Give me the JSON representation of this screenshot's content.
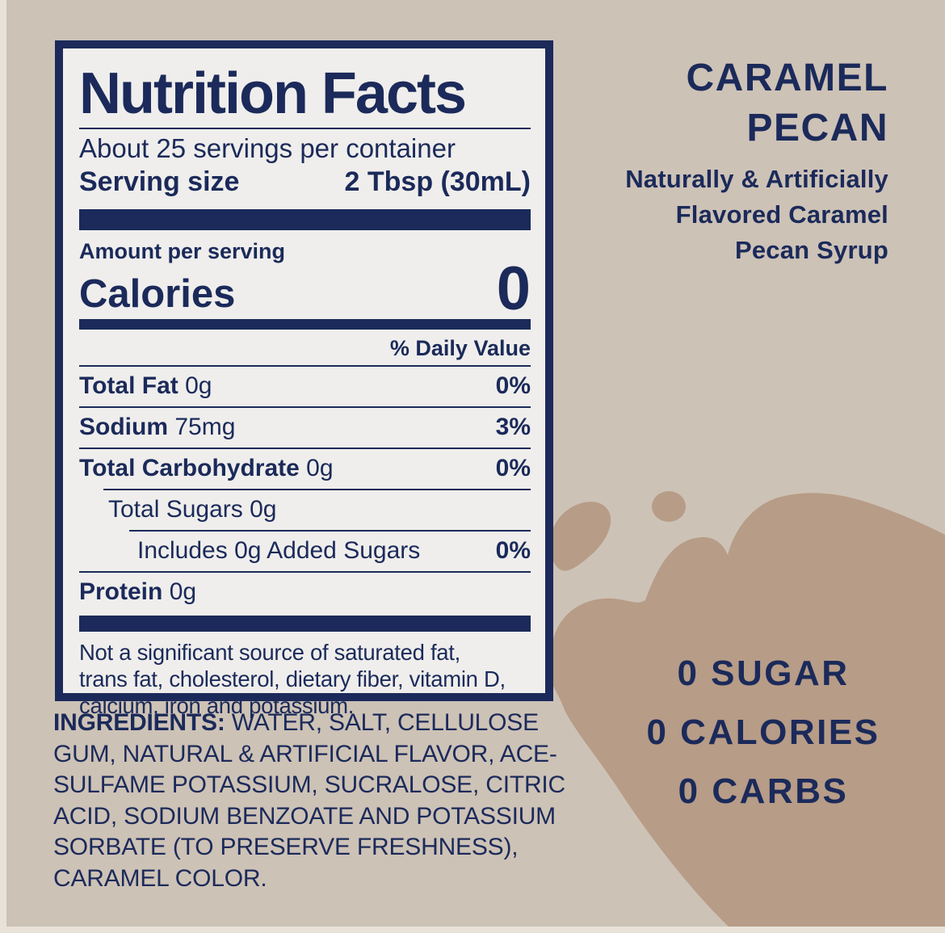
{
  "colors": {
    "navy": "#1b2a5a",
    "background_beige": "#cdc2b6",
    "splash_tan": "#b79c87",
    "label_background": "#efeeec",
    "edge_light": "#e9e2d9"
  },
  "label": {
    "title": "Nutrition Facts",
    "servings_per_container": "About 25 servings per container",
    "serving_size_label": "Serving size",
    "serving_size_value": "2 Tbsp (30mL)",
    "amount_per_serving": "Amount per serving",
    "calories_label": "Calories",
    "calories_value": "0",
    "daily_value_header": "% Daily Value",
    "rows": [
      {
        "name": "Total Fat",
        "amount": "0g",
        "dv": "0%",
        "indent": 0,
        "bold_name": true
      },
      {
        "name": "Sodium",
        "amount": "75mg",
        "dv": "3%",
        "indent": 0,
        "bold_name": true
      },
      {
        "name": "Total Carbohydrate",
        "amount": "0g",
        "dv": "0%",
        "indent": 0,
        "bold_name": true
      },
      {
        "name": "Total Sugars",
        "amount": "0g",
        "dv": "",
        "indent": 1,
        "bold_name": false
      },
      {
        "name": "Includes 0g Added Sugars",
        "amount": "",
        "dv": "0%",
        "indent": 2,
        "bold_name": false
      },
      {
        "name": "Protein",
        "amount": "0g",
        "dv": "",
        "indent": 0,
        "bold_name": true
      }
    ],
    "footnote_lines": [
      "Not a significant source of saturated fat,",
      "trans fat, cholesterol, dietary fiber, vitamin D,",
      "calcium, iron and potassium."
    ]
  },
  "ingredients": {
    "heading": "INGREDIENTS:",
    "lines": [
      "WATER, SALT, CELLULOSE",
      "GUM, NATURAL & ARTIFICIAL FLAVOR, ACE-",
      "SULFAME POTASSIUM, SUCRALOSE, CITRIC",
      "ACID, SODIUM BENZOATE AND POTASSIUM",
      "SORBATE (TO PRESERVE FRESHNESS),",
      "CARAMEL COLOR."
    ]
  },
  "flavor": {
    "title_line1": "CARAMEL",
    "title_line2": "PECAN",
    "subtitle_lines": [
      "Naturally & Artificially",
      "Flavored Caramel",
      "Pecan Syrup"
    ]
  },
  "claims": [
    "0 SUGAR",
    "0 CALORIES",
    "0 CARBS"
  ]
}
